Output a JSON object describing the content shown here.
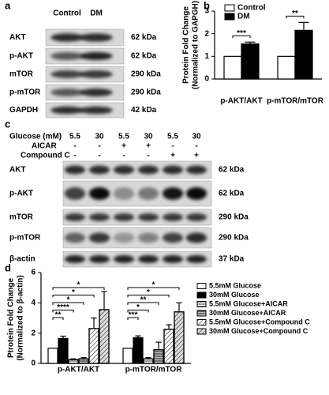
{
  "chart_data": [
    {
      "type": "bar",
      "panel": "b",
      "ylabel": [
        "Protein Fold Change",
        "(Normalized to GAPGH)"
      ],
      "categories": [
        "p-AKT/AKT",
        "p-mTOR/mTOR"
      ],
      "series": [
        {
          "name": "Control",
          "color": "#ffffff",
          "values": [
            1,
            1
          ]
        },
        {
          "name": "DM",
          "color": "#000000",
          "values": [
            1.55,
            2.15
          ],
          "errors": [
            0.08,
            0.35
          ]
        }
      ],
      "significance": [
        [
          "***"
        ],
        [
          "**"
        ]
      ],
      "ylim": [
        0,
        3
      ],
      "yticks": [
        0,
        1,
        2,
        3
      ]
    },
    {
      "type": "bar",
      "panel": "d",
      "ylabel": [
        "Ptrotein Fold Change",
        "(Normalized to β-actin)"
      ],
      "categories": [
        "p-AKT/AKT",
        "p-mTOR/mTOR"
      ],
      "series": [
        {
          "name": "5.5mM Glucose",
          "color": "#ffffff",
          "values": [
            1,
            1
          ]
        },
        {
          "name": "30mM Glucose",
          "color": "#000000",
          "values": [
            1.65,
            1.7
          ],
          "errors": [
            0.15,
            0.12
          ]
        },
        {
          "name": "5.5mM Glucose+AICAR",
          "color": "#ffffff",
          "hatch": "horizontal",
          "values": [
            0.25,
            0.3
          ],
          "errors": [
            0.05,
            0.08
          ]
        },
        {
          "name": "30mM Glucose+AICAR",
          "color": "#bbbbbb",
          "hatch": "horizontal",
          "values": [
            0.3,
            0.9
          ],
          "errors": [
            0.08,
            0.5
          ]
        },
        {
          "name": "5.5mM Glucose+Compound C",
          "color": "#ffffff",
          "hatch": "diagonal",
          "values": [
            2.3,
            2.25
          ],
          "errors": [
            0.7,
            0.3
          ]
        },
        {
          "name": "30mM Glucose+Compound C",
          "color": "#dddddd",
          "hatch": "diagonal",
          "values": [
            3.55,
            3.4
          ],
          "errors": [
            1.2,
            0.6
          ]
        }
      ],
      "significance": [
        [
          "**",
          "****",
          "*",
          "*",
          "*"
        ],
        [
          "***",
          "*",
          "**",
          "*",
          "*"
        ]
      ],
      "ylim": [
        0,
        6
      ],
      "yticks": [
        0,
        2,
        4,
        6
      ]
    }
  ],
  "blot_a": {
    "panel": "a",
    "columns": [
      "Control",
      "DM"
    ],
    "rows": [
      {
        "label": "AKT",
        "size": "62 kDa"
      },
      {
        "label": "p-AKT",
        "size": "62 kDa"
      },
      {
        "label": "mTOR",
        "size": "290 kDa"
      },
      {
        "label": "p-mTOR",
        "size": "290 kDa"
      },
      {
        "label": "GAPDH",
        "size": "42 kDa"
      }
    ]
  },
  "blot_c": {
    "panel": "c",
    "conditions": [
      {
        "label": "Glucose (mM)",
        "values": [
          "5.5",
          "30",
          "5.5",
          "30",
          "5.5",
          "30"
        ]
      },
      {
        "label": "AICAR",
        "values": [
          "-",
          "-",
          "+",
          "+",
          "-",
          "-"
        ]
      },
      {
        "label": "Compound C",
        "values": [
          "-",
          "-",
          "-",
          "-",
          "+",
          "+"
        ]
      }
    ],
    "rows": [
      {
        "label": "AKT",
        "size": "62 kDa"
      },
      {
        "label": "p-AKT",
        "size": "62 kDa"
      },
      {
        "label": "mTOR",
        "size": "290 kDa"
      },
      {
        "label": "p-mTOR",
        "size": "290 kDa"
      },
      {
        "label": "β-actin",
        "size": "37 kDa"
      }
    ]
  }
}
